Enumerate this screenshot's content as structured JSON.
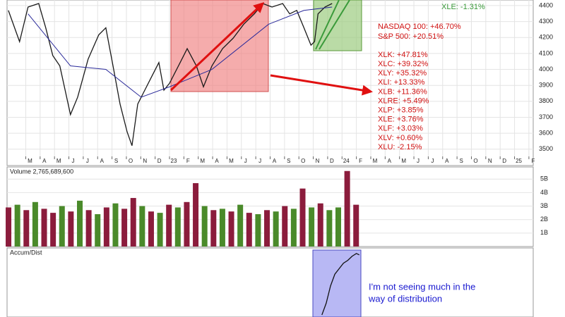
{
  "chart_data": [
    {
      "type": "line",
      "xlim": [
        0.7,
        37.3
      ],
      "xticks": [
        {
          "value": 2,
          "label": "M"
        },
        {
          "value": 3,
          "label": "A"
        },
        {
          "value": 4,
          "label": "M"
        },
        {
          "value": 5,
          "label": "J"
        },
        {
          "value": 6,
          "label": "J"
        },
        {
          "value": 7,
          "label": "A"
        },
        {
          "value": 8,
          "label": "S"
        },
        {
          "value": 9,
          "label": "O"
        },
        {
          "value": 10,
          "label": "N"
        },
        {
          "value": 11,
          "label": "D"
        },
        {
          "value": 12,
          "label": "23"
        },
        {
          "value": 13,
          "label": "F"
        },
        {
          "value": 14,
          "label": "M"
        },
        {
          "value": 15,
          "label": "A"
        },
        {
          "value": 16,
          "label": "M"
        },
        {
          "value": 17,
          "label": "J"
        },
        {
          "value": 18,
          "label": "J"
        },
        {
          "value": 19,
          "label": "A"
        },
        {
          "value": 20,
          "label": "S"
        },
        {
          "value": 21,
          "label": "O"
        },
        {
          "value": 22,
          "label": "N"
        },
        {
          "value": 23,
          "label": "D"
        },
        {
          "value": 24,
          "label": "24"
        },
        {
          "value": 25,
          "label": "F"
        },
        {
          "value": 26,
          "label": "M"
        },
        {
          "value": 27,
          "label": "A"
        },
        {
          "value": 28,
          "label": "M"
        },
        {
          "value": 29,
          "label": "J"
        },
        {
          "value": 30,
          "label": "J"
        },
        {
          "value": 31,
          "label": "A"
        },
        {
          "value": 32,
          "label": "S"
        },
        {
          "value": 33,
          "label": "O"
        },
        {
          "value": 34,
          "label": "N"
        },
        {
          "value": 35,
          "label": "D"
        },
        {
          "value": 36,
          "label": "25"
        },
        {
          "value": 37,
          "label": "F"
        }
      ],
      "ylim": [
        3455,
        4435
      ],
      "yticks": [
        3500,
        3600,
        3700,
        3800,
        3900,
        4000,
        4100,
        4200,
        4300,
        4400
      ],
      "grid": true,
      "series": [
        {
          "color": "#1a1a1a",
          "x": [
            0.79,
            1.57,
            2.16,
            2.9,
            3.39,
            3.88,
            4.37,
            5.11,
            5.61,
            6.34,
            7.08,
            7.57,
            8.07,
            8.56,
            9.05,
            9.39,
            9.79,
            10.28,
            10.77,
            11.26,
            11.61,
            12.0,
            12.74,
            13.23,
            13.87,
            14.36,
            14.95,
            15.69,
            16.43,
            17.16,
            17.9,
            18.49,
            19.13,
            19.87,
            20.36,
            20.85,
            21.35,
            21.84,
            22.09,
            22.33,
            22.82,
            23.31
          ],
          "values": [
            4370,
            4174,
            4391,
            4413,
            4261,
            4087,
            4022,
            3717,
            3826,
            4065,
            4217,
            4261,
            4022,
            3783,
            3609,
            3522,
            3783,
            3870,
            3957,
            4043,
            3870,
            3913,
            4043,
            4130,
            4022,
            3891,
            4022,
            4130,
            4196,
            4283,
            4348,
            4413,
            4391,
            4413,
            4348,
            4370,
            4261,
            4152,
            4174,
            4348,
            4391,
            4413
          ]
        },
        {
          "color": "#2a2a9a",
          "x": [
            2.16,
            5.11,
            7.57,
            10.03,
            12.0,
            14.95,
            18.89,
            21.35,
            23.31
          ],
          "values": [
            4348,
            4022,
            4000,
            3826,
            3891,
            4000,
            4283,
            4370,
            4391
          ]
        }
      ],
      "annotations": [
        "XLE:  -1.31%",
        "NASDAQ 100:  +46.70%",
        "S&P 500:  +20.51%",
        "XLK:  +47.81%",
        "XLC:  +39.32%",
        "XLY:  +35.32%",
        "XLI:  +13.33%",
        "XLB:  +11.36%",
        "XLRE:  +5.49%",
        "XLP:  +3.85%",
        "XLE:  +3.76%",
        "XLF:  +3.03%",
        "XLV:  +0.60%",
        "XLU:  -2.15%"
      ]
    },
    {
      "type": "bar",
      "title": "Volume 2,765,689,600",
      "xlim": [
        0.7,
        37.3
      ],
      "ylim": [
        0,
        5.9
      ],
      "yticks": [
        {
          "value": 1,
          "label": "1B"
        },
        {
          "value": 2,
          "label": "2B"
        },
        {
          "value": 3,
          "label": "3B"
        },
        {
          "value": 4,
          "label": "4B"
        },
        {
          "value": 5,
          "label": "5B"
        }
      ],
      "x": [
        0.8,
        1.42,
        2.04,
        2.66,
        3.28,
        3.9,
        4.52,
        5.14,
        5.76,
        6.38,
        7.0,
        7.62,
        8.24,
        8.86,
        9.48,
        10.1,
        10.72,
        11.34,
        11.96,
        12.58,
        13.2,
        13.82,
        14.44,
        15.06,
        15.68,
        16.3,
        16.92,
        17.54,
        18.16,
        18.78,
        19.4,
        20.02,
        20.64,
        21.26,
        21.88,
        22.5,
        23.12,
        23.74,
        24.36,
        24.98
      ],
      "values": [
        2.9,
        3.1,
        2.7,
        3.3,
        2.8,
        2.5,
        3.0,
        2.6,
        3.4,
        2.7,
        2.4,
        2.9,
        3.2,
        2.8,
        3.6,
        3.0,
        2.6,
        2.5,
        3.1,
        2.9,
        3.3,
        4.7,
        3.0,
        2.7,
        2.8,
        2.6,
        3.1,
        2.5,
        2.4,
        2.7,
        2.6,
        3.0,
        2.8,
        4.3,
        2.9,
        3.2,
        2.7,
        2.9,
        5.6,
        3.1
      ],
      "colors": [
        "#8b1c3c",
        "#4a8a2a",
        "#8b1c3c",
        "#4a8a2a",
        "#8b1c3c",
        "#8b1c3c",
        "#4a8a2a",
        "#8b1c3c",
        "#4a8a2a",
        "#8b1c3c",
        "#4a8a2a",
        "#8b1c3c",
        "#4a8a2a",
        "#8b1c3c",
        "#8b1c3c",
        "#4a8a2a",
        "#8b1c3c",
        "#4a8a2a",
        "#8b1c3c",
        "#4a8a2a",
        "#8b1c3c",
        "#8b1c3c",
        "#4a8a2a",
        "#8b1c3c",
        "#4a8a2a",
        "#8b1c3c",
        "#4a8a2a",
        "#8b1c3c",
        "#4a8a2a",
        "#8b1c3c",
        "#4a8a2a",
        "#8b1c3c",
        "#4a8a2a",
        "#8b1c3c",
        "#4a8a2a",
        "#8b1c3c",
        "#4a8a2a",
        "#4a8a2a",
        "#8b1c3c",
        "#8b1c3c"
      ]
    },
    {
      "type": "line",
      "title": "Accum/Dist",
      "xlim": [
        0.7,
        37.3
      ],
      "ylim": [
        0,
        100
      ],
      "series": [
        {
          "color": "#111111",
          "x": [
            22.6,
            22.9,
            23.2,
            23.5,
            23.8,
            24.1,
            24.4,
            24.7,
            25.0,
            25.2
          ],
          "values": [
            3,
            20,
            45,
            62,
            70,
            78,
            82,
            88,
            92,
            90
          ]
        }
      ],
      "annotation": [
        "I'm not seeing much in the",
        "way of distribution"
      ]
    }
  ]
}
